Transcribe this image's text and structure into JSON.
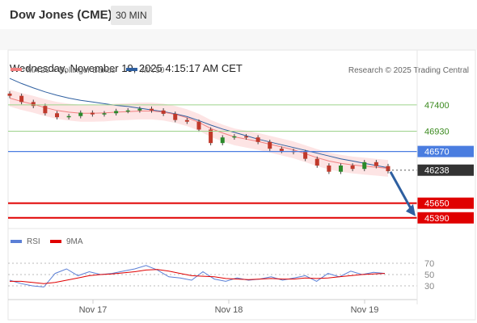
{
  "header": {
    "title": "Dow Jones (CME)",
    "timeframe": "30 MIN"
  },
  "datetime": "Wednesday, November 19, 2025 4:15:17 AM CET",
  "legend": {
    "ma20_label": "MA 20 + Bollinger Bands",
    "ma50_label": "MA 50",
    "credit": "Research © 2025 Trading Central"
  },
  "rsi_legend": {
    "rsi_label": "RSI",
    "ma_label": "9MA"
  },
  "colors": {
    "ma20": "#f08080",
    "ma50": "#2e5fa0",
    "bollinger_fill": "#fde4e4",
    "level_green": "#9dd38b",
    "level_blue": "#4a7de0",
    "level_red": "#e00000",
    "arrow": "#2e5fa0",
    "rsi": "#5b7fd6",
    "rsi_ma": "#e00000"
  },
  "chart_data": [
    {
      "type": "line",
      "title": "",
      "x_ticks": [
        "Nov 17",
        "Nov 18",
        "Nov 19"
      ],
      "ylim": [
        45200,
        47900
      ],
      "price_levels": [
        {
          "label": "47400",
          "value": 47400,
          "kind": "resistance"
        },
        {
          "label": "46930",
          "value": 46930,
          "kind": "resistance"
        },
        {
          "label": "46570",
          "value": 46570,
          "kind": "pivot"
        },
        {
          "label": "46238",
          "value": 46238,
          "kind": "last"
        },
        {
          "label": "45650",
          "value": 45650,
          "kind": "support"
        },
        {
          "label": "45390",
          "value": 45390,
          "kind": "support"
        }
      ],
      "series": [
        {
          "name": "Price",
          "values": [
            47560,
            47450,
            47380,
            47250,
            47180,
            47200,
            47260,
            47230,
            47250,
            47290,
            47300,
            47330,
            47300,
            47240,
            47130,
            47100,
            46960,
            46720,
            46820,
            46840,
            46820,
            46740,
            46620,
            46580,
            46560,
            46440,
            46320,
            46210,
            46320,
            46260,
            46380,
            46310,
            46220
          ]
        },
        {
          "name": "MA 20",
          "values": [
            47520,
            47460,
            47410,
            47350,
            47300,
            47270,
            47250,
            47250,
            47255,
            47270,
            47280,
            47290,
            47290,
            47270,
            47230,
            47170,
            47090,
            46980,
            46900,
            46830,
            46790,
            46750,
            46700,
            46650,
            46600,
            46530,
            46460,
            46400,
            46360,
            46330,
            46310,
            46290,
            46270
          ]
        },
        {
          "name": "MA 50",
          "values": [
            47870,
            47780,
            47700,
            47630,
            47570,
            47520,
            47480,
            47450,
            47420,
            47390,
            47370,
            47340,
            47310,
            47280,
            47240,
            47190,
            47120,
            47040,
            46970,
            46910,
            46850,
            46790,
            46740,
            46690,
            46640,
            46590,
            46540,
            46490,
            46440,
            46400,
            46360,
            46320,
            46280
          ]
        }
      ],
      "forecast_arrow": {
        "from": 46238,
        "to": 45390
      }
    },
    {
      "type": "line",
      "title": "",
      "y_ticks": [
        "70",
        "50",
        "30"
      ],
      "ylim": [
        10,
        90
      ],
      "series": [
        {
          "name": "RSI",
          "values": [
            40,
            34,
            30,
            28,
            52,
            60,
            48,
            55,
            50,
            52,
            56,
            60,
            66,
            58,
            46,
            44,
            40,
            55,
            42,
            38,
            44,
            40,
            42,
            46,
            40,
            44,
            48,
            38,
            52,
            46,
            56,
            50,
            54,
            52
          ]
        },
        {
          "name": "9MA",
          "values": [
            38,
            38,
            36,
            34,
            36,
            40,
            44,
            48,
            50,
            51,
            53,
            55,
            58,
            59,
            56,
            52,
            48,
            47,
            46,
            43,
            42,
            41,
            42,
            43,
            42,
            42,
            44,
            43,
            44,
            46,
            48,
            50,
            51,
            52
          ]
        }
      ]
    }
  ]
}
